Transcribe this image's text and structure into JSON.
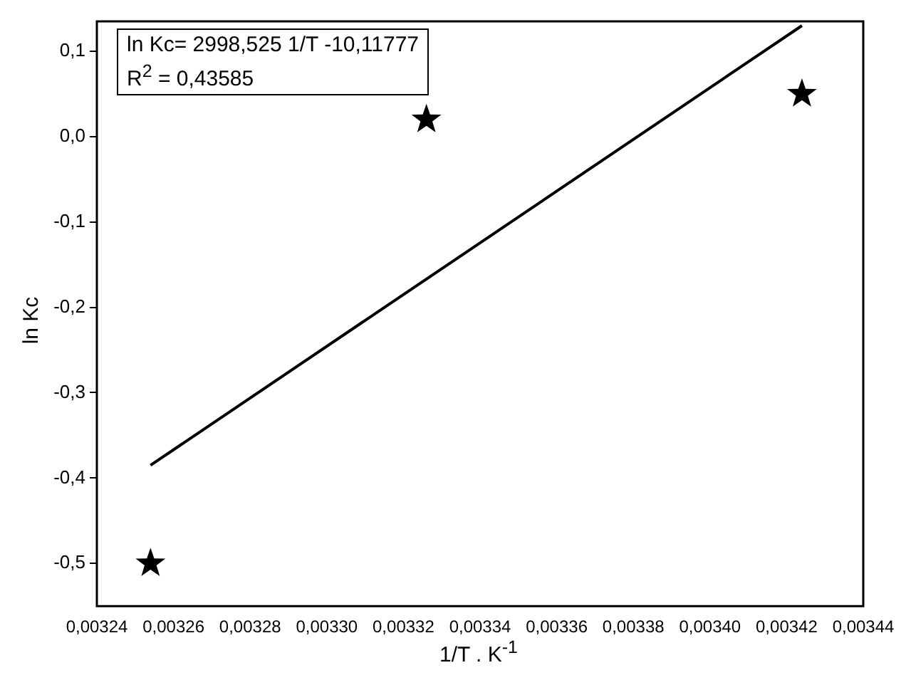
{
  "chart_data": {
    "type": "scatter",
    "xlabel": "1/T . K$^{-1}$",
    "ylabel": "ln Kc",
    "annotations": [
      "ln Kc= 2998,525 1/T -10,11777",
      "R$^{2}$ = 0,43585"
    ],
    "xlim": [
      0.00324,
      0.00344
    ],
    "xticks": [
      {
        "value": 0.00324,
        "label": "0,00324"
      },
      {
        "value": 0.00326,
        "label": "0,00326"
      },
      {
        "value": 0.00328,
        "label": "0,00328"
      },
      {
        "value": 0.0033,
        "label": "0,00330"
      },
      {
        "value": 0.00332,
        "label": "0,00332"
      },
      {
        "value": 0.00334,
        "label": "0,00334"
      },
      {
        "value": 0.00336,
        "label": "0,00336"
      },
      {
        "value": 0.00338,
        "label": "0,00338"
      },
      {
        "value": 0.0034,
        "label": "0,00340"
      },
      {
        "value": 0.00342,
        "label": "0,00342"
      },
      {
        "value": 0.00344,
        "label": "0,00344"
      }
    ],
    "ylim": [
      -0.55,
      0.135
    ],
    "yticks": [
      {
        "value": -0.5,
        "label": "-0,5"
      },
      {
        "value": -0.4,
        "label": "-0,4"
      },
      {
        "value": -0.3,
        "label": "-0,3"
      },
      {
        "value": -0.2,
        "label": "-0,2"
      },
      {
        "value": -0.1,
        "label": "-0,1"
      },
      {
        "value": 0,
        "label": "0,0"
      },
      {
        "value": 0.1,
        "label": "0,1"
      }
    ],
    "grid": false,
    "legend": false,
    "series": [
      {
        "type": "scatter",
        "color": "#000000",
        "marker": "star",
        "x": [
          0.003254,
          0.003326,
          0.003424
        ],
        "values": [
          -0.5,
          0.02,
          0.05
        ]
      },
      {
        "type": "line",
        "color": "#000000",
        "marker": "none",
        "line_style": "solid",
        "x": [
          0.003254,
          0.003424
        ],
        "values": [
          -0.385,
          0.13
        ]
      }
    ]
  }
}
